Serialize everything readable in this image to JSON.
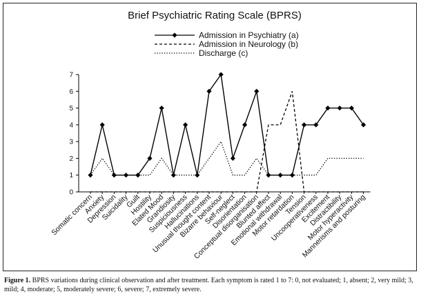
{
  "caption": {
    "label": "Figure 1.",
    "text": "BPRS variations during clinical observation and after treatment. Each symptom is rated 1 to 7: 0, not evaluated; 1, absent; 2, very mild; 3, mild; 4, moderate; 5, moderately severe; 6, severe; 7, extremely severe."
  },
  "chart_data": {
    "type": "line",
    "title": "Brief Psychiatric Rating Scale (BPRS)",
    "xlabel": "",
    "ylabel": "",
    "ylim": [
      0,
      7
    ],
    "yticks": [
      0,
      1,
      2,
      3,
      4,
      5,
      6,
      7
    ],
    "grid": false,
    "legend_position": "top",
    "categories": [
      "Somatic concern",
      "Anxiety",
      "Depression",
      "Suicidality",
      "Guilt",
      "Hostility",
      "Elated Mood",
      "Grandiosity",
      "Suspiciousness",
      "Hallucinations",
      "Unusual thought content",
      "Bizarre behaviour",
      "Self-neglect",
      "Disorientation",
      "Conceptual disorganisation",
      "Blunted affect",
      "Emotional withdrawal",
      "Motor retardation",
      "Tension",
      "Uncooperativeness",
      "Excitement",
      "Distractibility",
      "Motor hyperactivity",
      "Mannerisms and posturing"
    ],
    "series": [
      {
        "name": "Admission in Psychiatry (a)",
        "style": "solid-diamond",
        "color": "#000000",
        "values": [
          1,
          4,
          1,
          1,
          1,
          2,
          5,
          1,
          4,
          1,
          6,
          7,
          2,
          4,
          6,
          1,
          1,
          1,
          4,
          4,
          5,
          5,
          5,
          4
        ]
      },
      {
        "name": "Admission in Neurology (b)",
        "style": "dashed",
        "color": "#000000",
        "values": [
          0,
          0,
          0,
          0,
          0,
          0,
          0,
          0,
          0,
          0,
          0,
          0,
          0,
          0,
          0,
          4,
          4,
          6,
          0,
          0,
          0,
          0,
          0,
          0
        ]
      },
      {
        "name": "Discharge (c)",
        "style": "dotted",
        "color": "#000000",
        "values": [
          1,
          2,
          1,
          1,
          1,
          1,
          2,
          1,
          1,
          1,
          2,
          3,
          1,
          1,
          2,
          1,
          1,
          1,
          1,
          1,
          2,
          2,
          2,
          2
        ]
      }
    ]
  }
}
